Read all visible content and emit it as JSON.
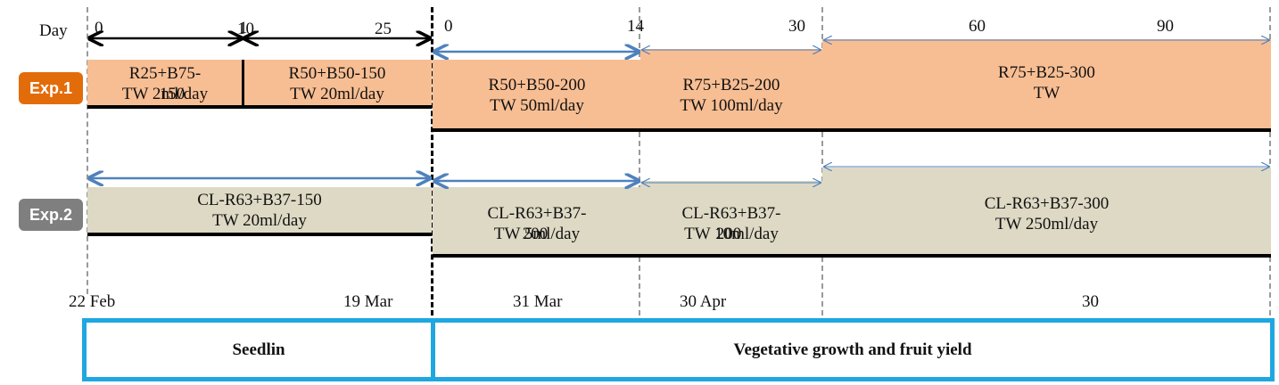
{
  "header": {
    "day_label": "Day"
  },
  "experiments": {
    "exp1": {
      "badge": "Exp.1",
      "color": "#e36c0a",
      "block_color": "#f8be93",
      "segments": [
        {
          "label": "R25+B75-\nTW 2ml/day",
          "overlay": "150"
        },
        {
          "label": "R50+B50-150\nTW 20ml/day"
        },
        {
          "label": "R50+B50-200\nTW 50ml/day"
        },
        {
          "label": "R75+B25-200\nTW 100ml/day"
        },
        {
          "label": "R75+B25-300\nTW"
        }
      ]
    },
    "exp2": {
      "badge": "Exp.2",
      "color": "#7f7f7f",
      "block_color": "#ddd9c4",
      "segments": [
        {
          "label": "CL-R63+B37-150\nTW 20ml/day"
        },
        {
          "label": "CL-R63+B37-\nTW 5ml/day",
          "overlay": "200"
        },
        {
          "label": "CL-R63+B37-\nTW 10ml/day",
          "overlay": "200"
        },
        {
          "label": "CL-R63+B37-300\nTW 250ml/day"
        }
      ]
    }
  },
  "day_ticks": [
    {
      "text": "0"
    },
    {
      "text": "10"
    },
    {
      "text": "1"
    },
    {
      "text": "25"
    },
    {
      "text": "0"
    },
    {
      "text": "14"
    },
    {
      "text": "30"
    },
    {
      "text": "60"
    },
    {
      "text": "90"
    }
  ],
  "dates": [
    "22 Feb",
    "19 Mar",
    "31 Mar",
    "30 Apr",
    "30"
  ],
  "stages": {
    "seedling": "Seedlin",
    "vegetative": "Vegetative growth and fruit yield"
  },
  "colors": {
    "arrow_blue": "#4f81bd",
    "stage_border": "#1ea7e1"
  }
}
